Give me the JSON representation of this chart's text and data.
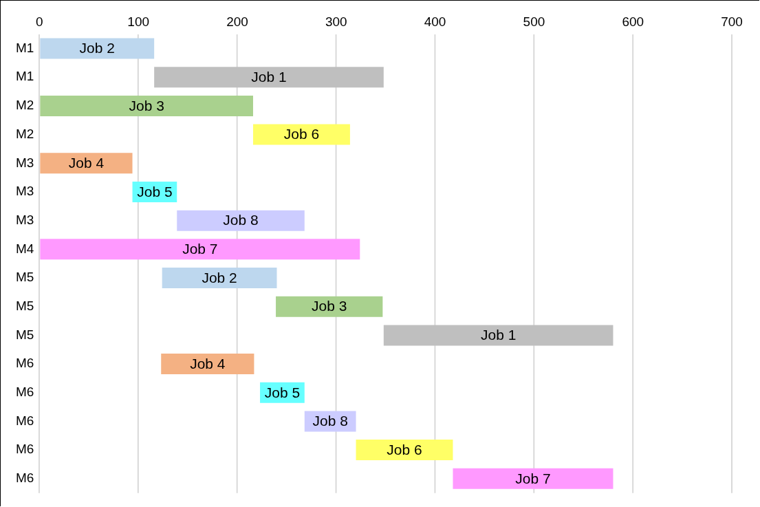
{
  "chart_data": {
    "type": "bar",
    "orientation": "horizontal",
    "categories": [
      "M1",
      "M1",
      "M2",
      "M2",
      "M3",
      "M3",
      "M3",
      "M4",
      "M5",
      "M5",
      "M5",
      "M6",
      "M6",
      "M6",
      "M6",
      "M6"
    ],
    "base": [
      0,
      116,
      0,
      216,
      0,
      94,
      139,
      0,
      124,
      239,
      348,
      123,
      223,
      268,
      320,
      418
    ],
    "values": [
      116,
      232,
      216,
      98,
      94,
      45,
      129,
      324,
      116,
      108,
      232,
      94,
      45,
      52,
      98,
      162
    ],
    "colors": [
      "#bdd7ee",
      "#bfbfbf",
      "#a9d18e",
      "#ffff66",
      "#f4b183",
      "#66ffff",
      "#ccccff",
      "#ff99ff",
      "#bdd7ee",
      "#a9d18e",
      "#bfbfbf",
      "#f4b183",
      "#66ffff",
      "#ccccff",
      "#ffff66",
      "#ff99ff"
    ],
    "value_labels": [
      "Job 2",
      "Job 1",
      "Job 3",
      "Job 6",
      "Job 4",
      "Job 5",
      "Job 8",
      "Job 7",
      "Job 2",
      "Job 3",
      "Job 1",
      "Job 4",
      "Job 5",
      "Job 8",
      "Job 6",
      "Job 7"
    ],
    "xlim": [
      0,
      700
    ],
    "xticks": [
      0,
      100,
      200,
      300,
      400,
      500,
      600,
      700
    ],
    "grid": "x",
    "legend": false
  }
}
